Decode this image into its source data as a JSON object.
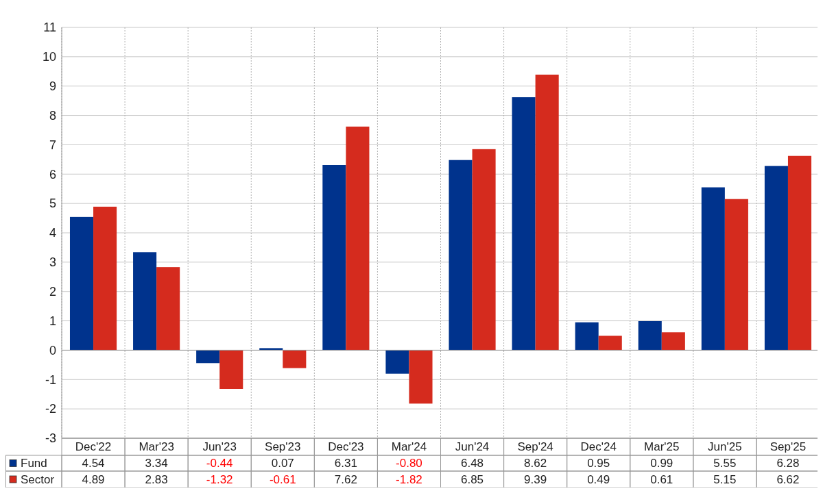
{
  "chart_data": {
    "type": "bar",
    "categories": [
      "Dec'22",
      "Mar'23",
      "Jun'23",
      "Sep'23",
      "Dec'23",
      "Mar'24",
      "Jun'24",
      "Sep'24",
      "Dec'24",
      "Mar'25",
      "Jun'25",
      "Sep'25"
    ],
    "series": [
      {
        "name": "Fund",
        "color": "#00338d",
        "values": [
          4.54,
          3.34,
          -0.44,
          0.07,
          6.31,
          -0.8,
          6.48,
          8.62,
          0.95,
          0.99,
          5.55,
          6.28
        ],
        "value_labels": [
          "4.54",
          "3.34",
          "-0.44",
          "0.07",
          "6.31",
          "-0.80",
          "6.48",
          "8.62",
          "0.95",
          "0.99",
          "5.55",
          "6.28"
        ]
      },
      {
        "name": "Sector",
        "color": "#d52b1e",
        "values": [
          4.89,
          2.83,
          -1.32,
          -0.61,
          7.62,
          -1.82,
          6.85,
          9.39,
          0.49,
          0.61,
          5.15,
          6.62
        ],
        "value_labels": [
          "4.89",
          "2.83",
          "-1.32",
          "-0.61",
          "7.62",
          "-1.82",
          "6.85",
          "9.39",
          "0.49",
          "0.61",
          "5.15",
          "6.62"
        ]
      }
    ],
    "ylim": [
      -3,
      11
    ],
    "yticks": [
      -3,
      -2,
      -1,
      0,
      1,
      2,
      3,
      4,
      5,
      6,
      7,
      8,
      9,
      10,
      11
    ],
    "grid": true,
    "legend": "bottom left"
  }
}
